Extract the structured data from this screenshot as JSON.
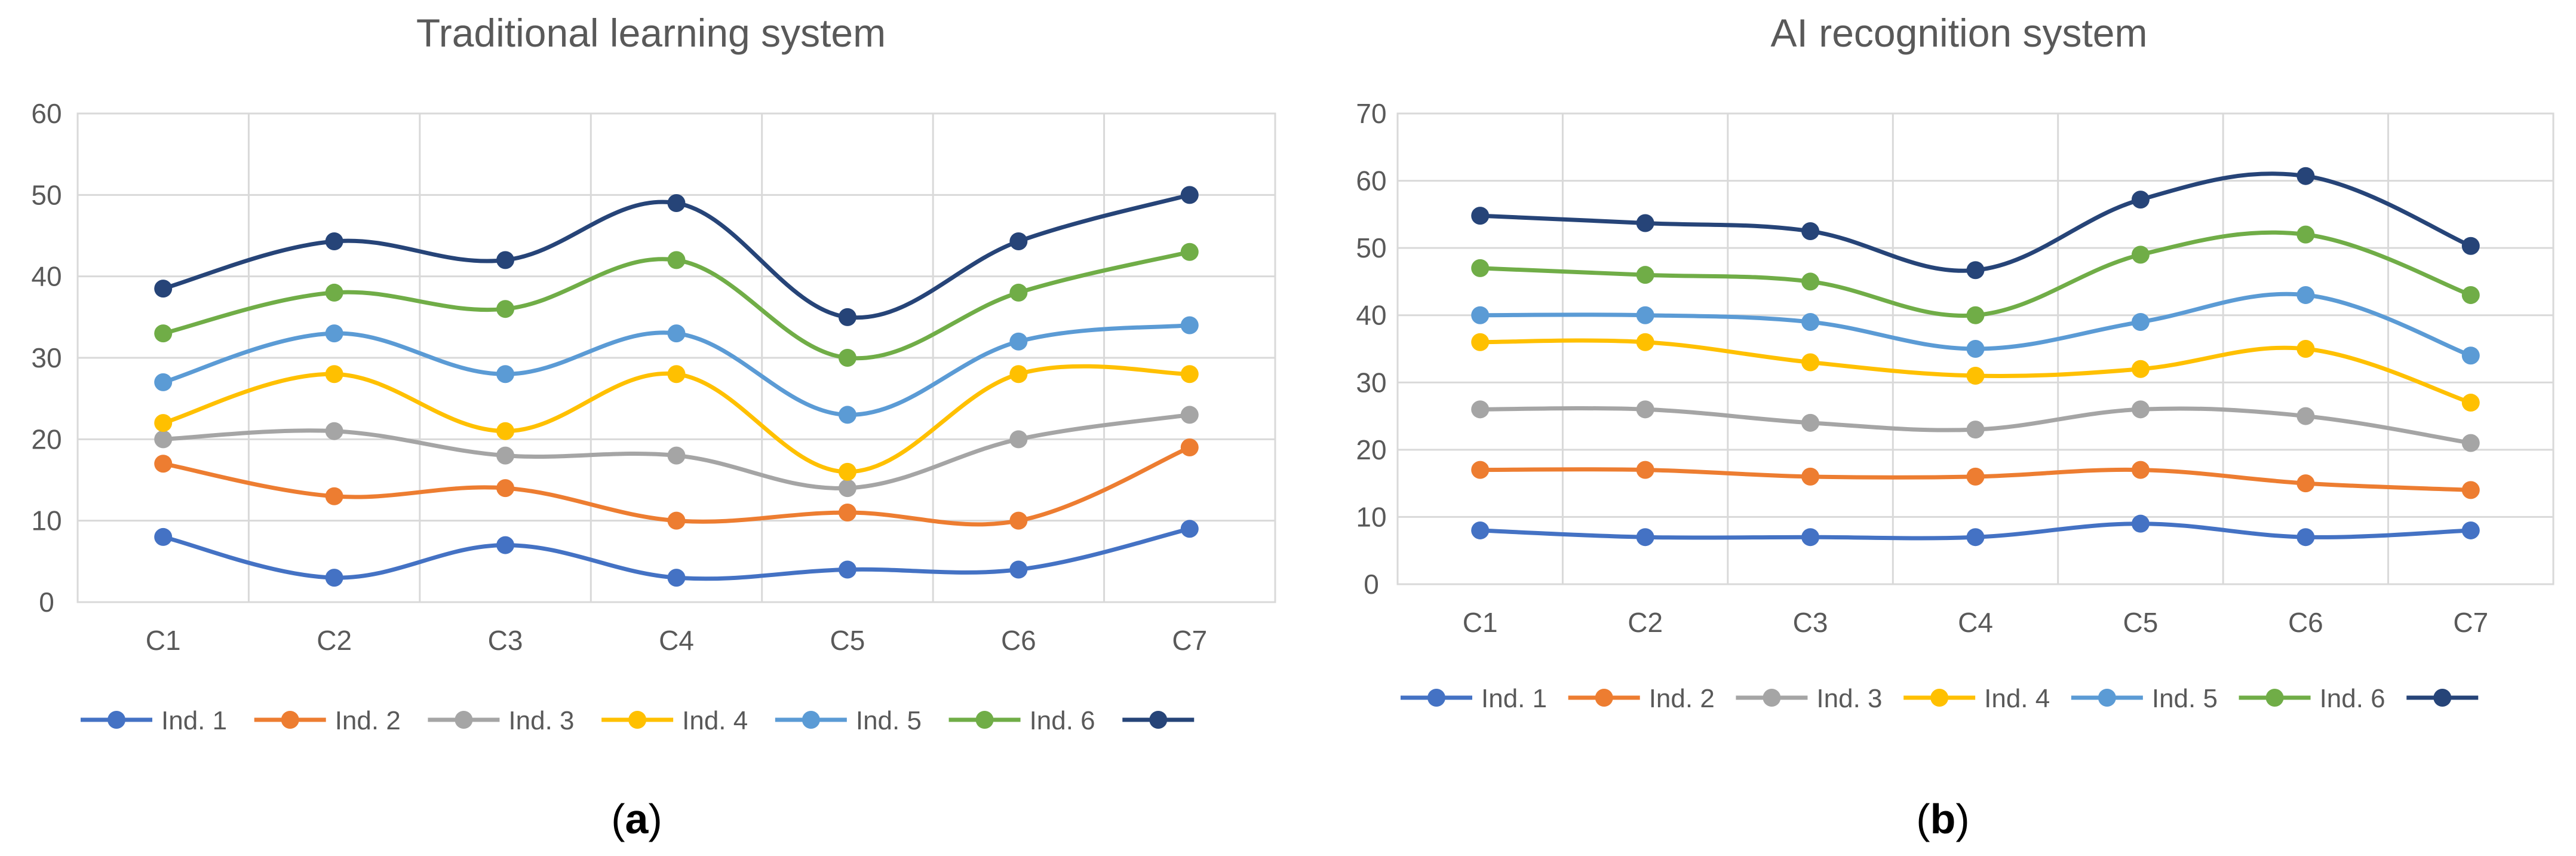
{
  "panels": [
    {
      "caption": "a",
      "chart_data": {
        "type": "line",
        "title": "Traditional learning system",
        "xlabel": "",
        "ylabel": "",
        "categories": [
          "C1",
          "C2",
          "C3",
          "C4",
          "C5",
          "C6",
          "C7"
        ],
        "ylim": [
          0,
          60
        ],
        "yticks": [
          "0",
          "10",
          "20",
          "30",
          "40",
          "50",
          "60"
        ],
        "grid": true,
        "legend_position": "bottom",
        "series": [
          {
            "name": "Ind. 1",
            "color": "#4472C4",
            "values": [
              8,
              3,
              7,
              3,
              4,
              4,
              9
            ]
          },
          {
            "name": "Ind. 2",
            "color": "#ED7D31",
            "values": [
              17,
              13,
              14,
              10,
              11,
              10,
              19
            ]
          },
          {
            "name": "Ind. 3",
            "color": "#A5A5A5",
            "values": [
              20,
              21,
              18,
              18,
              14,
              20,
              23
            ]
          },
          {
            "name": "Ind. 4",
            "color": "#FFC000",
            "values": [
              22,
              28,
              21,
              28,
              16,
              28,
              28
            ]
          },
          {
            "name": "Ind. 5",
            "color": "#5B9BD5",
            "values": [
              27,
              33,
              28,
              33,
              23,
              32,
              34
            ]
          },
          {
            "name": "Ind. 6",
            "color": "#70AD47",
            "values": [
              33,
              38,
              36,
              42,
              30,
              38,
              43
            ]
          },
          {
            "name": "",
            "color": "#264478",
            "values": [
              38.5,
              44.3,
              42,
              49,
              35,
              44.3,
              50
            ]
          }
        ]
      }
    },
    {
      "caption": "b",
      "chart_data": {
        "type": "line",
        "title": "AI recognition system",
        "xlabel": "",
        "ylabel": "",
        "categories": [
          "C1",
          "C2",
          "C3",
          "C4",
          "C5",
          "C6",
          "C7"
        ],
        "ylim": [
          0,
          70
        ],
        "yticks": [
          "0",
          "10",
          "20",
          "30",
          "40",
          "50",
          "60",
          "70"
        ],
        "grid": true,
        "legend_position": "bottom",
        "series": [
          {
            "name": "Ind. 1",
            "color": "#4472C4",
            "values": [
              8,
              7,
              7,
              7,
              9,
              7,
              8
            ]
          },
          {
            "name": "Ind. 2",
            "color": "#ED7D31",
            "values": [
              17,
              17,
              16,
              16,
              17,
              15,
              14
            ]
          },
          {
            "name": "Ind. 3",
            "color": "#A5A5A5",
            "values": [
              26,
              26,
              24,
              23,
              26,
              25,
              21
            ]
          },
          {
            "name": "Ind. 4",
            "color": "#FFC000",
            "values": [
              36,
              36,
              33,
              31,
              32,
              35,
              27
            ]
          },
          {
            "name": "Ind. 5",
            "color": "#5B9BD5",
            "values": [
              40,
              40,
              39,
              35,
              39,
              43,
              34
            ]
          },
          {
            "name": "Ind. 6",
            "color": "#70AD47",
            "values": [
              47,
              46,
              45,
              40,
              49,
              52,
              43
            ]
          },
          {
            "name": "",
            "color": "#264478",
            "values": [
              54.8,
              53.7,
              52.5,
              46.7,
              57.2,
              60.7,
              50.3
            ]
          }
        ]
      }
    }
  ]
}
